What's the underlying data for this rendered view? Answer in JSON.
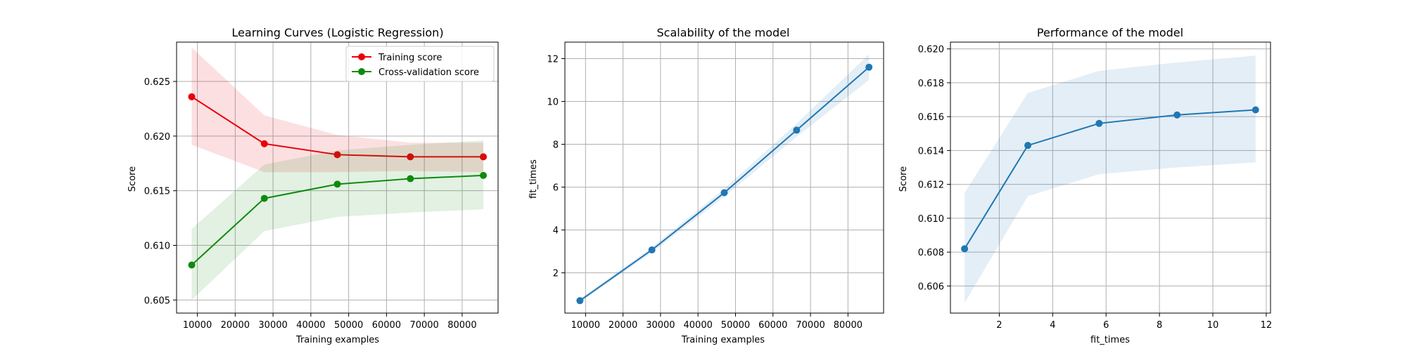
{
  "colors": {
    "training": "#d62728",
    "training_line": "#e8000b",
    "cv": "#0f8a0f",
    "blue": "#1f77b4",
    "grid": "#b0b0b0",
    "axis": "#000000"
  },
  "chart_data": [
    {
      "type": "line",
      "title": "Learning Curves (Logistic Regression)",
      "xlabel": "Training examples",
      "ylabel": "Score",
      "xlim": [
        4500,
        89500
      ],
      "ylim": [
        0.6038,
        0.6286
      ],
      "xticks": [
        10000,
        20000,
        30000,
        40000,
        50000,
        60000,
        70000,
        80000
      ],
      "yticks": [
        0.605,
        0.61,
        0.615,
        0.62,
        0.625
      ],
      "grid": true,
      "legend": "top-right",
      "x": [
        8500,
        27700,
        47000,
        66300,
        85600
      ],
      "series": [
        {
          "name": "Training score",
          "color": "#e8000b",
          "values": [
            0.6236,
            0.6193,
            0.6183,
            0.6181,
            0.6181
          ],
          "band_lower": [
            0.6192,
            0.6167,
            0.6167,
            0.6168,
            0.6167
          ],
          "band_upper": [
            0.6281,
            0.6219,
            0.6201,
            0.6194,
            0.6194
          ]
        },
        {
          "name": "Cross-validation score",
          "color": "#0f8a0f",
          "values": [
            0.6082,
            0.6143,
            0.6156,
            0.6161,
            0.6164
          ],
          "band_lower": [
            0.605,
            0.6113,
            0.6126,
            0.613,
            0.6133
          ],
          "band_upper": [
            0.6115,
            0.6174,
            0.6187,
            0.6192,
            0.6196
          ]
        }
      ]
    },
    {
      "type": "line",
      "title": "Scalability of the model",
      "xlabel": "Training examples",
      "ylabel": "fit_times",
      "xlim": [
        4500,
        89500
      ],
      "ylim": [
        0.12,
        12.77
      ],
      "xticks": [
        10000,
        20000,
        30000,
        40000,
        50000,
        60000,
        70000,
        80000
      ],
      "yticks": [
        2,
        4,
        6,
        8,
        10,
        12
      ],
      "grid": true,
      "x": [
        8500,
        27700,
        47000,
        66300,
        85600
      ],
      "series": [
        {
          "color": "#1f77b4",
          "values": [
            0.7,
            3.07,
            5.74,
            8.66,
            11.6
          ],
          "band_lower": [
            0.62,
            2.95,
            5.55,
            8.35,
            11.0
          ],
          "band_upper": [
            0.78,
            3.19,
            5.93,
            8.97,
            12.2
          ]
        }
      ]
    },
    {
      "type": "line",
      "title": "Performance of the model",
      "xlabel": "fit_times",
      "ylabel": "Score",
      "xlim": [
        0.17,
        12.16
      ],
      "ylim": [
        0.6044,
        0.6204
      ],
      "xticks": [
        2,
        4,
        6,
        8,
        10,
        12
      ],
      "yticks": [
        0.606,
        0.608,
        0.61,
        0.612,
        0.614,
        0.616,
        0.618,
        0.62
      ],
      "grid": true,
      "x": [
        0.7,
        3.07,
        5.74,
        8.66,
        11.6
      ],
      "series": [
        {
          "color": "#1f77b4",
          "values": [
            0.6082,
            0.6143,
            0.6156,
            0.6161,
            0.6164
          ],
          "band_lower": [
            0.605,
            0.6113,
            0.6126,
            0.613,
            0.6133
          ],
          "band_upper": [
            0.6115,
            0.6174,
            0.6187,
            0.6192,
            0.6196
          ]
        }
      ]
    }
  ]
}
